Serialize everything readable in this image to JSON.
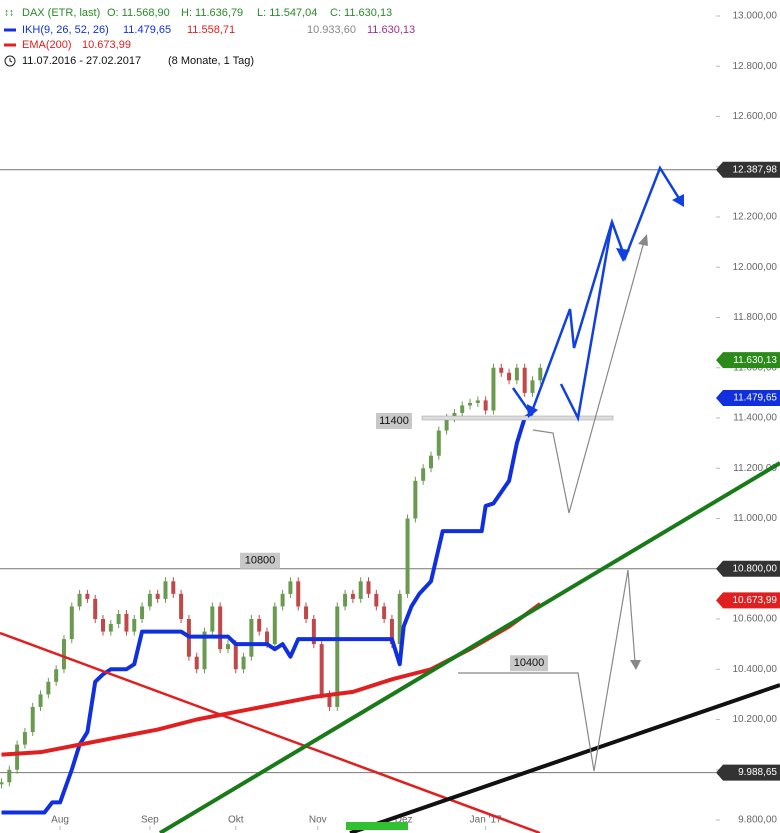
{
  "chart_data": {
    "type": "candlestick",
    "header": {
      "symbol": "DAX (ETR, last)",
      "ohlc": [
        "O: 11.568,90",
        "H: 11.636,79",
        "L: 11.547,04",
        "C: 11.630,13"
      ],
      "color": "#2a8a2a",
      "indicators": [
        {
          "name": "IKH(9, 26, 52, 26)",
          "color": "#1030e0",
          "readings": [
            {
              "text": "11.479,65",
              "color": "#1030e0"
            },
            {
              "text": "11.558,71",
              "color": "#e02020"
            },
            {
              "text": "10.933,60",
              "color": "#888888"
            },
            {
              "text": "11.630,13",
              "color": "#a03090"
            }
          ]
        },
        {
          "name": "EMA(200)",
          "color": "#e02020",
          "readings": [
            {
              "text": "10.673,99",
              "color": "#e02020"
            }
          ]
        }
      ],
      "range": "11.07.2016 - 27.02.2017",
      "period": "(8 Monate, 1 Tag)"
    },
    "x": [
      0,
      2,
      4,
      6,
      8,
      10,
      12,
      14,
      16,
      18,
      20,
      22,
      24,
      26,
      28,
      30,
      32,
      34,
      36,
      38,
      40,
      42,
      44,
      46,
      48,
      50,
      52,
      54,
      56,
      58,
      60,
      62,
      64,
      66,
      68,
      70,
      72,
      74,
      76,
      78,
      80,
      82,
      84,
      86,
      88,
      90,
      92,
      94,
      96,
      98,
      100,
      102,
      104,
      106,
      108,
      110,
      112,
      114,
      116,
      118,
      120,
      122,
      124,
      126,
      128,
      130,
      132,
      134,
      136,
      138
    ],
    "close": [
      9950,
      10000,
      10100,
      10150,
      10250,
      10300,
      10350,
      10400,
      10520,
      10650,
      10700,
      10680,
      10600,
      10550,
      10580,
      10620,
      10550,
      10600,
      10650,
      10700,
      10680,
      10750,
      10700,
      10600,
      10450,
      10400,
      10550,
      10650,
      10480,
      10500,
      10400,
      10450,
      10600,
      10550,
      10500,
      10650,
      10700,
      10750,
      10650,
      10600,
      10500,
      10300,
      10250,
      10650,
      10700,
      10680,
      10750,
      10700,
      10650,
      10600,
      10500,
      10700,
      11000,
      11150,
      11200,
      11250,
      11350,
      11400,
      11420,
      11450,
      11460,
      11470,
      11430,
      11600,
      11580,
      11550,
      11600,
      11500,
      11550,
      11600
    ],
    "up_color": "#6a9a50",
    "down_color": "#c04848",
    "lines": [
      {
        "color": "#1030e0",
        "width": 4,
        "x": [
          0,
          11,
          13,
          15,
          18,
          20,
          22,
          24,
          26,
          28,
          32,
          34,
          36,
          46,
          48,
          58,
          60,
          68,
          70,
          72,
          74,
          76,
          86,
          100,
          102,
          103,
          105,
          107,
          110,
          113,
          115,
          120,
          123,
          124,
          126,
          130,
          132,
          134,
          136
        ],
        "values": [
          9830,
          9830,
          9870,
          9870,
          10000,
          10100,
          10150,
          10350,
          10380,
          10400,
          10400,
          10420,
          10550,
          10550,
          10530,
          10530,
          10500,
          10500,
          10480,
          10500,
          10450,
          10520,
          10520,
          10520,
          10420,
          10570,
          10650,
          10700,
          10750,
          10950,
          10950,
          10950,
          10950,
          11050,
          11060,
          11150,
          11300,
          11400,
          11420
        ]
      },
      {
        "color": "#e02020",
        "width": 4,
        "x": [
          0,
          10,
          20,
          30,
          40,
          50,
          60,
          70,
          80,
          90,
          100,
          110,
          120,
          130,
          138
        ],
        "values": [
          10060,
          10070,
          10100,
          10130,
          10160,
          10200,
          10230,
          10260,
          10290,
          10310,
          10360,
          10400,
          10480,
          10570,
          10660
        ]
      }
    ],
    "xlim": [
      0,
      183
    ],
    "xticks": [
      {
        "value": 15,
        "label": "Aug"
      },
      {
        "value": 38,
        "label": "Sep"
      },
      {
        "value": 60,
        "label": "Okt"
      },
      {
        "value": 81,
        "label": "Nov"
      },
      {
        "value": 103,
        "label": "Dez"
      },
      {
        "value": 124,
        "label": "Jan '17"
      }
    ],
    "ylim": [
      9800,
      13000
    ],
    "yticks": [
      {
        "value": 9800,
        "label": "9.800,00"
      },
      {
        "value": 10000,
        "label": "10.000,00"
      },
      {
        "value": 10200,
        "label": "10.200,00"
      },
      {
        "value": 10400,
        "label": "10.400,00"
      },
      {
        "value": 10600,
        "label": "10.600,00"
      },
      {
        "value": 10800,
        "label": "10.800,00"
      },
      {
        "value": 11000,
        "label": "11.000,00"
      },
      {
        "value": 11200,
        "label": "11.200,00"
      },
      {
        "value": 11400,
        "label": "11.400,00"
      },
      {
        "value": 11600,
        "label": "11.600,00"
      },
      {
        "value": 11800,
        "label": "11.800,00"
      },
      {
        "value": 12000,
        "label": "12.000,00"
      },
      {
        "value": 12200,
        "label": "12.200,00"
      },
      {
        "value": 12400,
        "label": "12.400,00"
      },
      {
        "value": 12600,
        "label": "12.600,00"
      },
      {
        "value": 12800,
        "label": "12.800,00"
      },
      {
        "value": 13000,
        "label": "13.000,00"
      }
    ],
    "price_tags": [
      {
        "value": 12387.98,
        "label": "12.387,98",
        "color": "#333333",
        "line": true
      },
      {
        "value": 11630.13,
        "label": "11.630,13",
        "color": "#2a8a1a",
        "line": false
      },
      {
        "value": 11479.65,
        "label": "11.479,65",
        "color": "#1030e0",
        "line": false
      },
      {
        "value": 10800,
        "label": "10.800,00",
        "color": "#333333",
        "line": true
      },
      {
        "value": 10673.99,
        "label": "10.673,99",
        "color": "#e02020",
        "line": false
      },
      {
        "value": 9988.65,
        "label": "9.988,65",
        "color": "#333333",
        "line": true
      }
    ],
    "annotations": [
      11400,
      10800,
      10400
    ]
  }
}
